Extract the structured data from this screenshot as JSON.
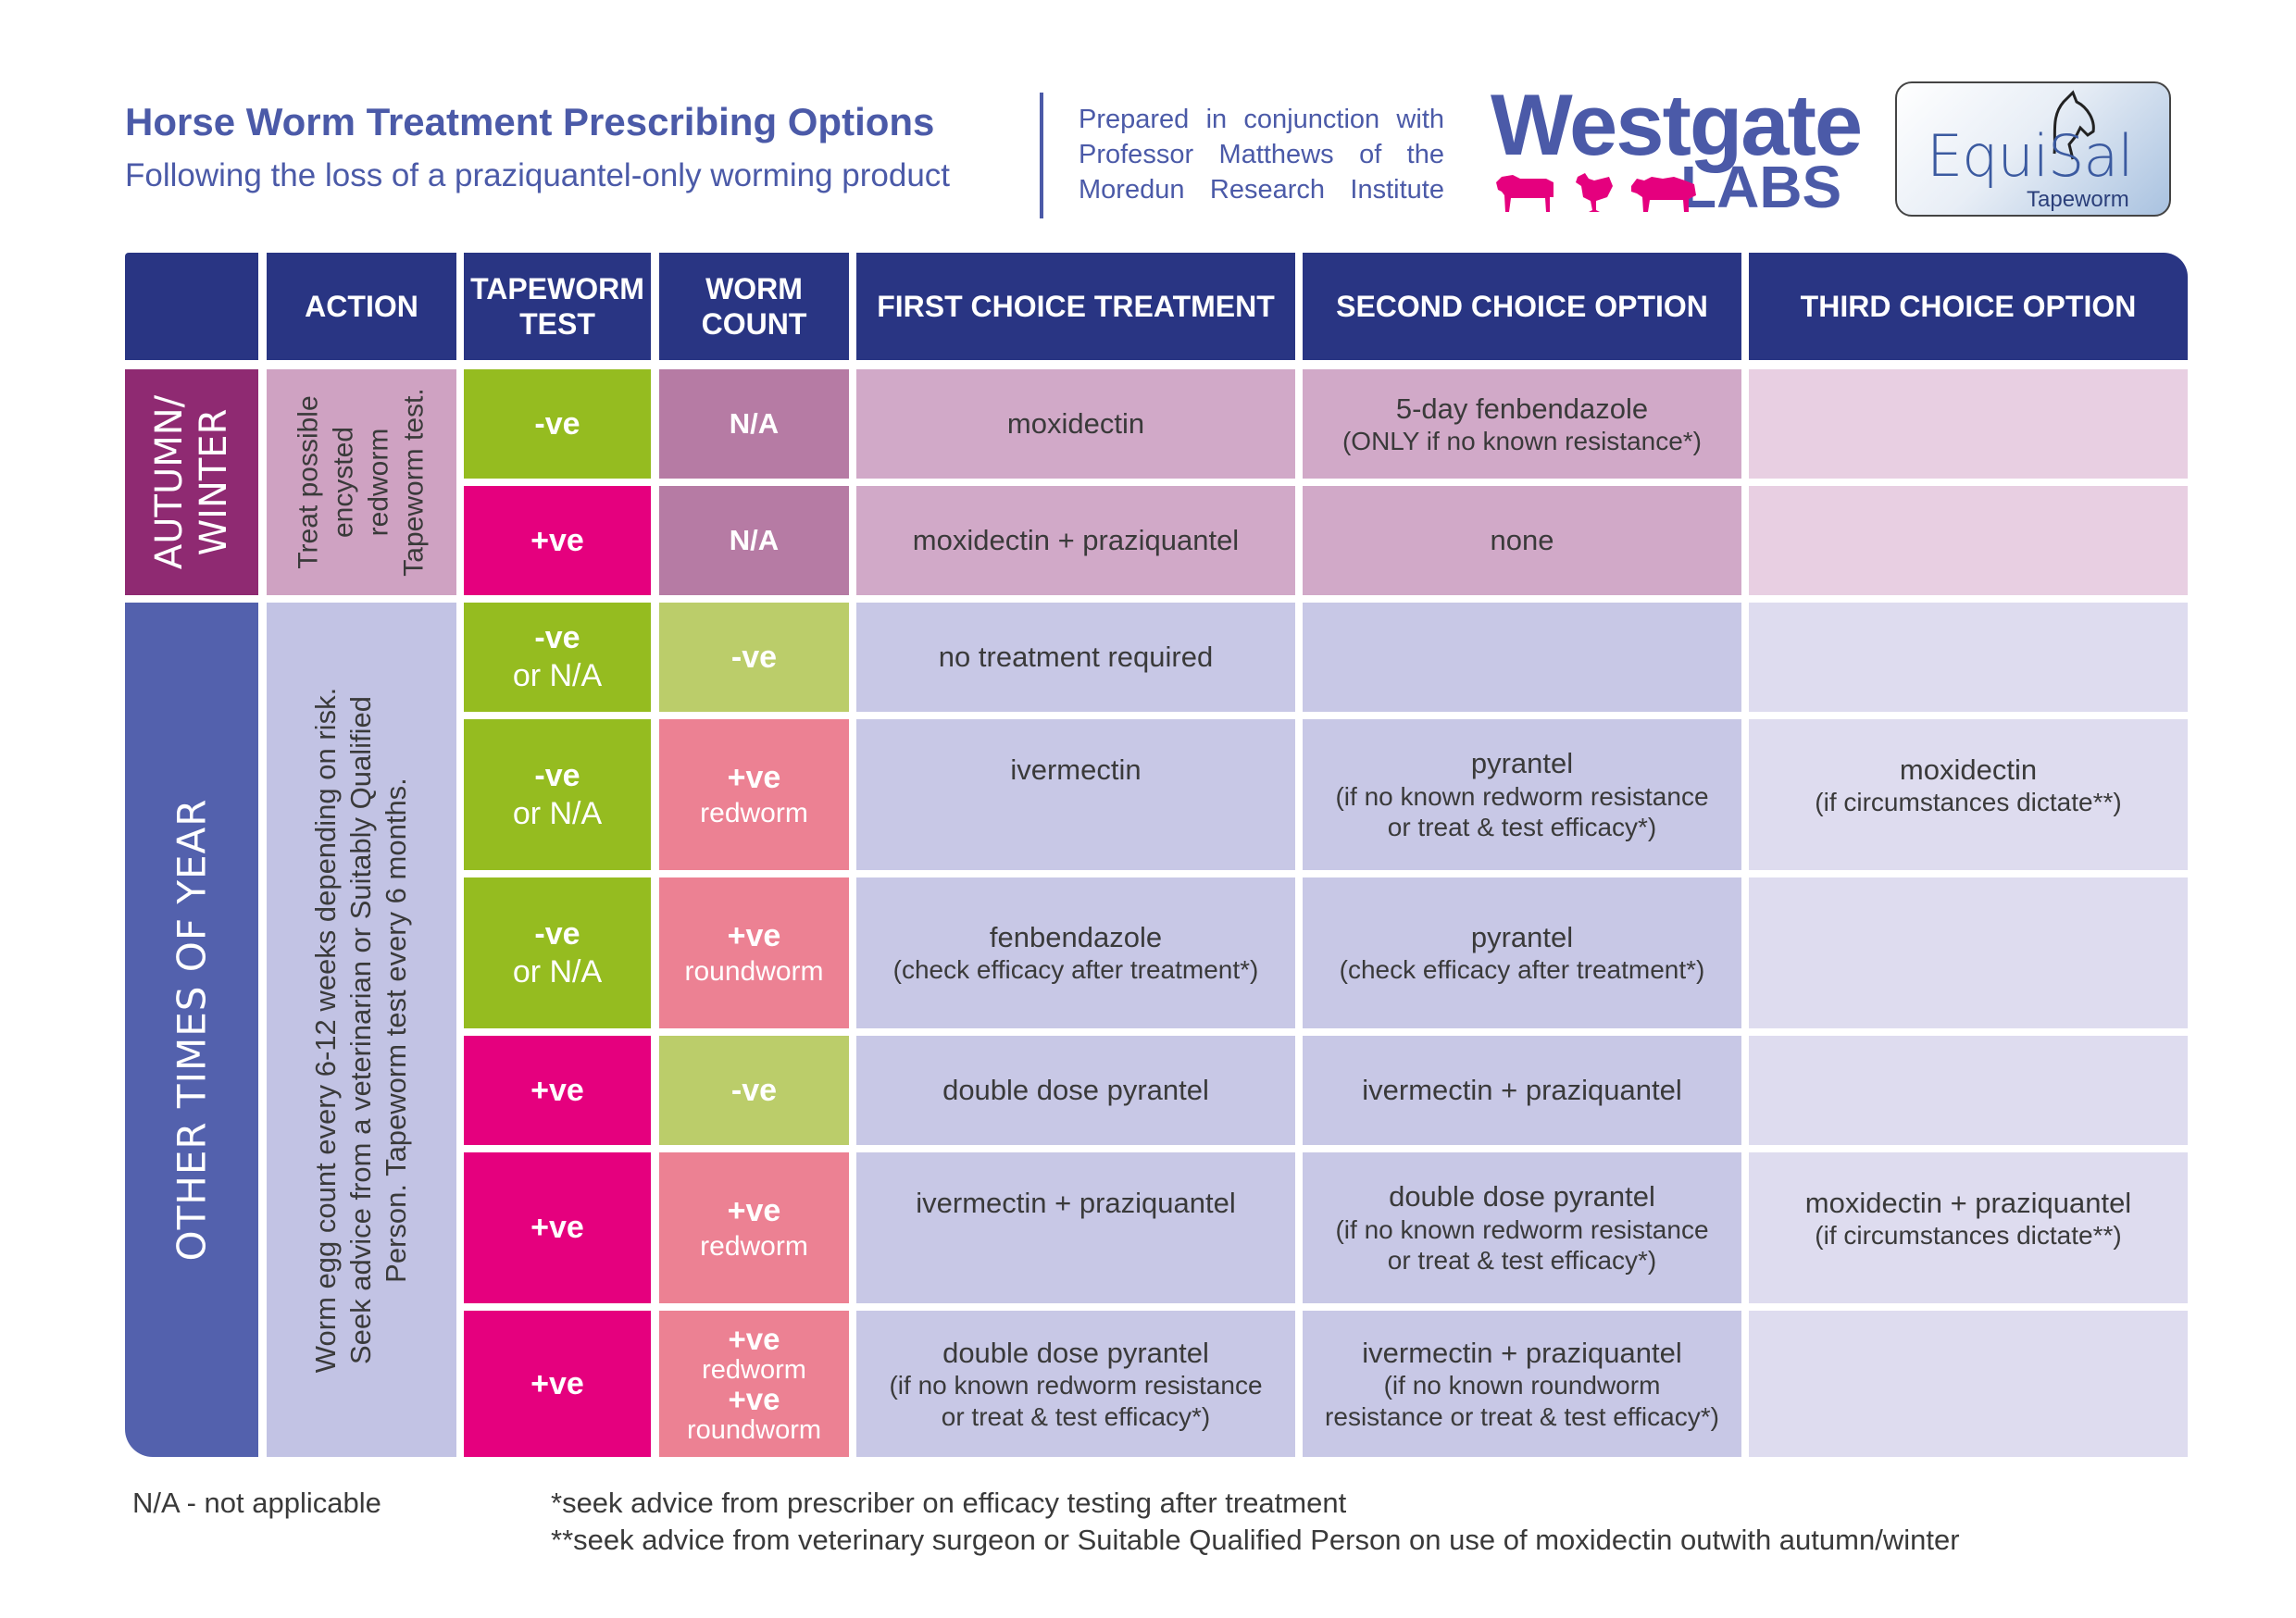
{
  "header": {
    "title": "Horse Worm Treatment Prescribing Options",
    "subtitle": "Following the loss of a praziquantel-only worming product",
    "prepared_lines": [
      "Prepared in conjunction with",
      "Professor Matthews of the",
      "Moredun Research Institute"
    ]
  },
  "logos": {
    "westgate_word": "Westgate",
    "westgate_labs": "LABS",
    "equisal_word": "EquiSal",
    "equisal_sub": "Tapeworm"
  },
  "table": {
    "headers": {
      "action": "ACTION",
      "tapeworm_test": "TAPEWORM TEST",
      "worm_count": "WORM COUNT",
      "first": "FIRST CHOICE TREATMENT",
      "second": "SECOND CHOICE OPTION",
      "third": "THIRD CHOICE OPTION"
    },
    "autumn": {
      "season_line1": "AUTUMN/",
      "season_line2": "WINTER",
      "action_lines": [
        "Treat possible",
        "encysted",
        "redworm",
        "Tapeworm test."
      ],
      "rows": [
        {
          "tape": "-ve",
          "count": "N/A",
          "first": "moxidectin",
          "second": "5-day fenbendazole",
          "second_note": "(ONLY if no known resistance*)"
        },
        {
          "tape": "+ve",
          "count": "N/A",
          "first": "moxidectin + praziquantel",
          "second": "none"
        }
      ]
    },
    "other": {
      "season": "OTHER TIMES OF YEAR",
      "action_lines": [
        "Worm egg count every 6-12 weeks depending on risk.",
        "Seek advice from a veterinarian or Suitably Qualified",
        "Person.  Tapeworm test every 6 months."
      ],
      "rows": [
        {
          "tape1": "-ve",
          "tape2": "or N/A",
          "count": "-ve",
          "first": "no treatment required"
        },
        {
          "tape1": "-ve",
          "tape2": "or N/A",
          "count": "+ve",
          "count_sub": "redworm",
          "first": "ivermectin",
          "second": "pyrantel",
          "second_note1": "(if no known redworm resistance",
          "second_note2": "or treat & test efficacy*)",
          "third": "moxidectin",
          "third_note": "(if circumstances dictate**)"
        },
        {
          "tape1": "-ve",
          "tape2": "or N/A",
          "count": "+ve",
          "count_sub": "roundworm",
          "first": "fenbendazole",
          "first_note": "(check efficacy after treatment*)",
          "second": "pyrantel",
          "second_note": "(check efficacy after treatment*)"
        },
        {
          "tape": "+ve",
          "count": "-ve",
          "first": "double dose pyrantel",
          "second": "ivermectin + praziquantel"
        },
        {
          "tape": "+ve",
          "count": "+ve",
          "count_sub": "redworm",
          "first": "ivermectin + praziquantel",
          "second": "double dose pyrantel",
          "second_note1": "(if no known redworm resistance",
          "second_note2": "or treat & test efficacy*)",
          "third": "moxidectin + praziquantel",
          "third_note": "(if circumstances dictate**)"
        },
        {
          "tape": "+ve",
          "count1": "+ve",
          "count1_sub": "redworm",
          "count2": "+ve",
          "count2_sub": "roundworm",
          "first": "double dose pyrantel",
          "first_note1": "(if no known redworm resistance",
          "first_note2": "or treat & test efficacy*)",
          "second": "ivermectin + praziquantel",
          "second_note1": "(if no known roundworm",
          "second_note2": "resistance or treat & test efficacy*)"
        }
      ]
    }
  },
  "footnotes": {
    "na": "N/A - not applicable",
    "star1": "*seek advice from prescriber on efficacy testing after treatment",
    "star2": "**seek advice from veterinary surgeon or Suitable Qualified Person on use of moxidectin outwith autumn/winter"
  },
  "colors": {
    "navy": "#293583",
    "header_text": "#4b5aa8",
    "autumn_season": "#8f2a72",
    "autumn_action": "#cfa2c2",
    "other_season": "#5361ad",
    "other_action": "#c2c3e4",
    "green": "#95bc20",
    "light_green": "#bbcd6a",
    "magenta": "#e5007e",
    "pink": "#ec8193",
    "mauve": "#b67ba4",
    "autumn_cell": "#d1a9c8",
    "autumn_third": "#e8cfe2",
    "other_cell": "#c8c8e6",
    "other_third": "#dedcef"
  }
}
